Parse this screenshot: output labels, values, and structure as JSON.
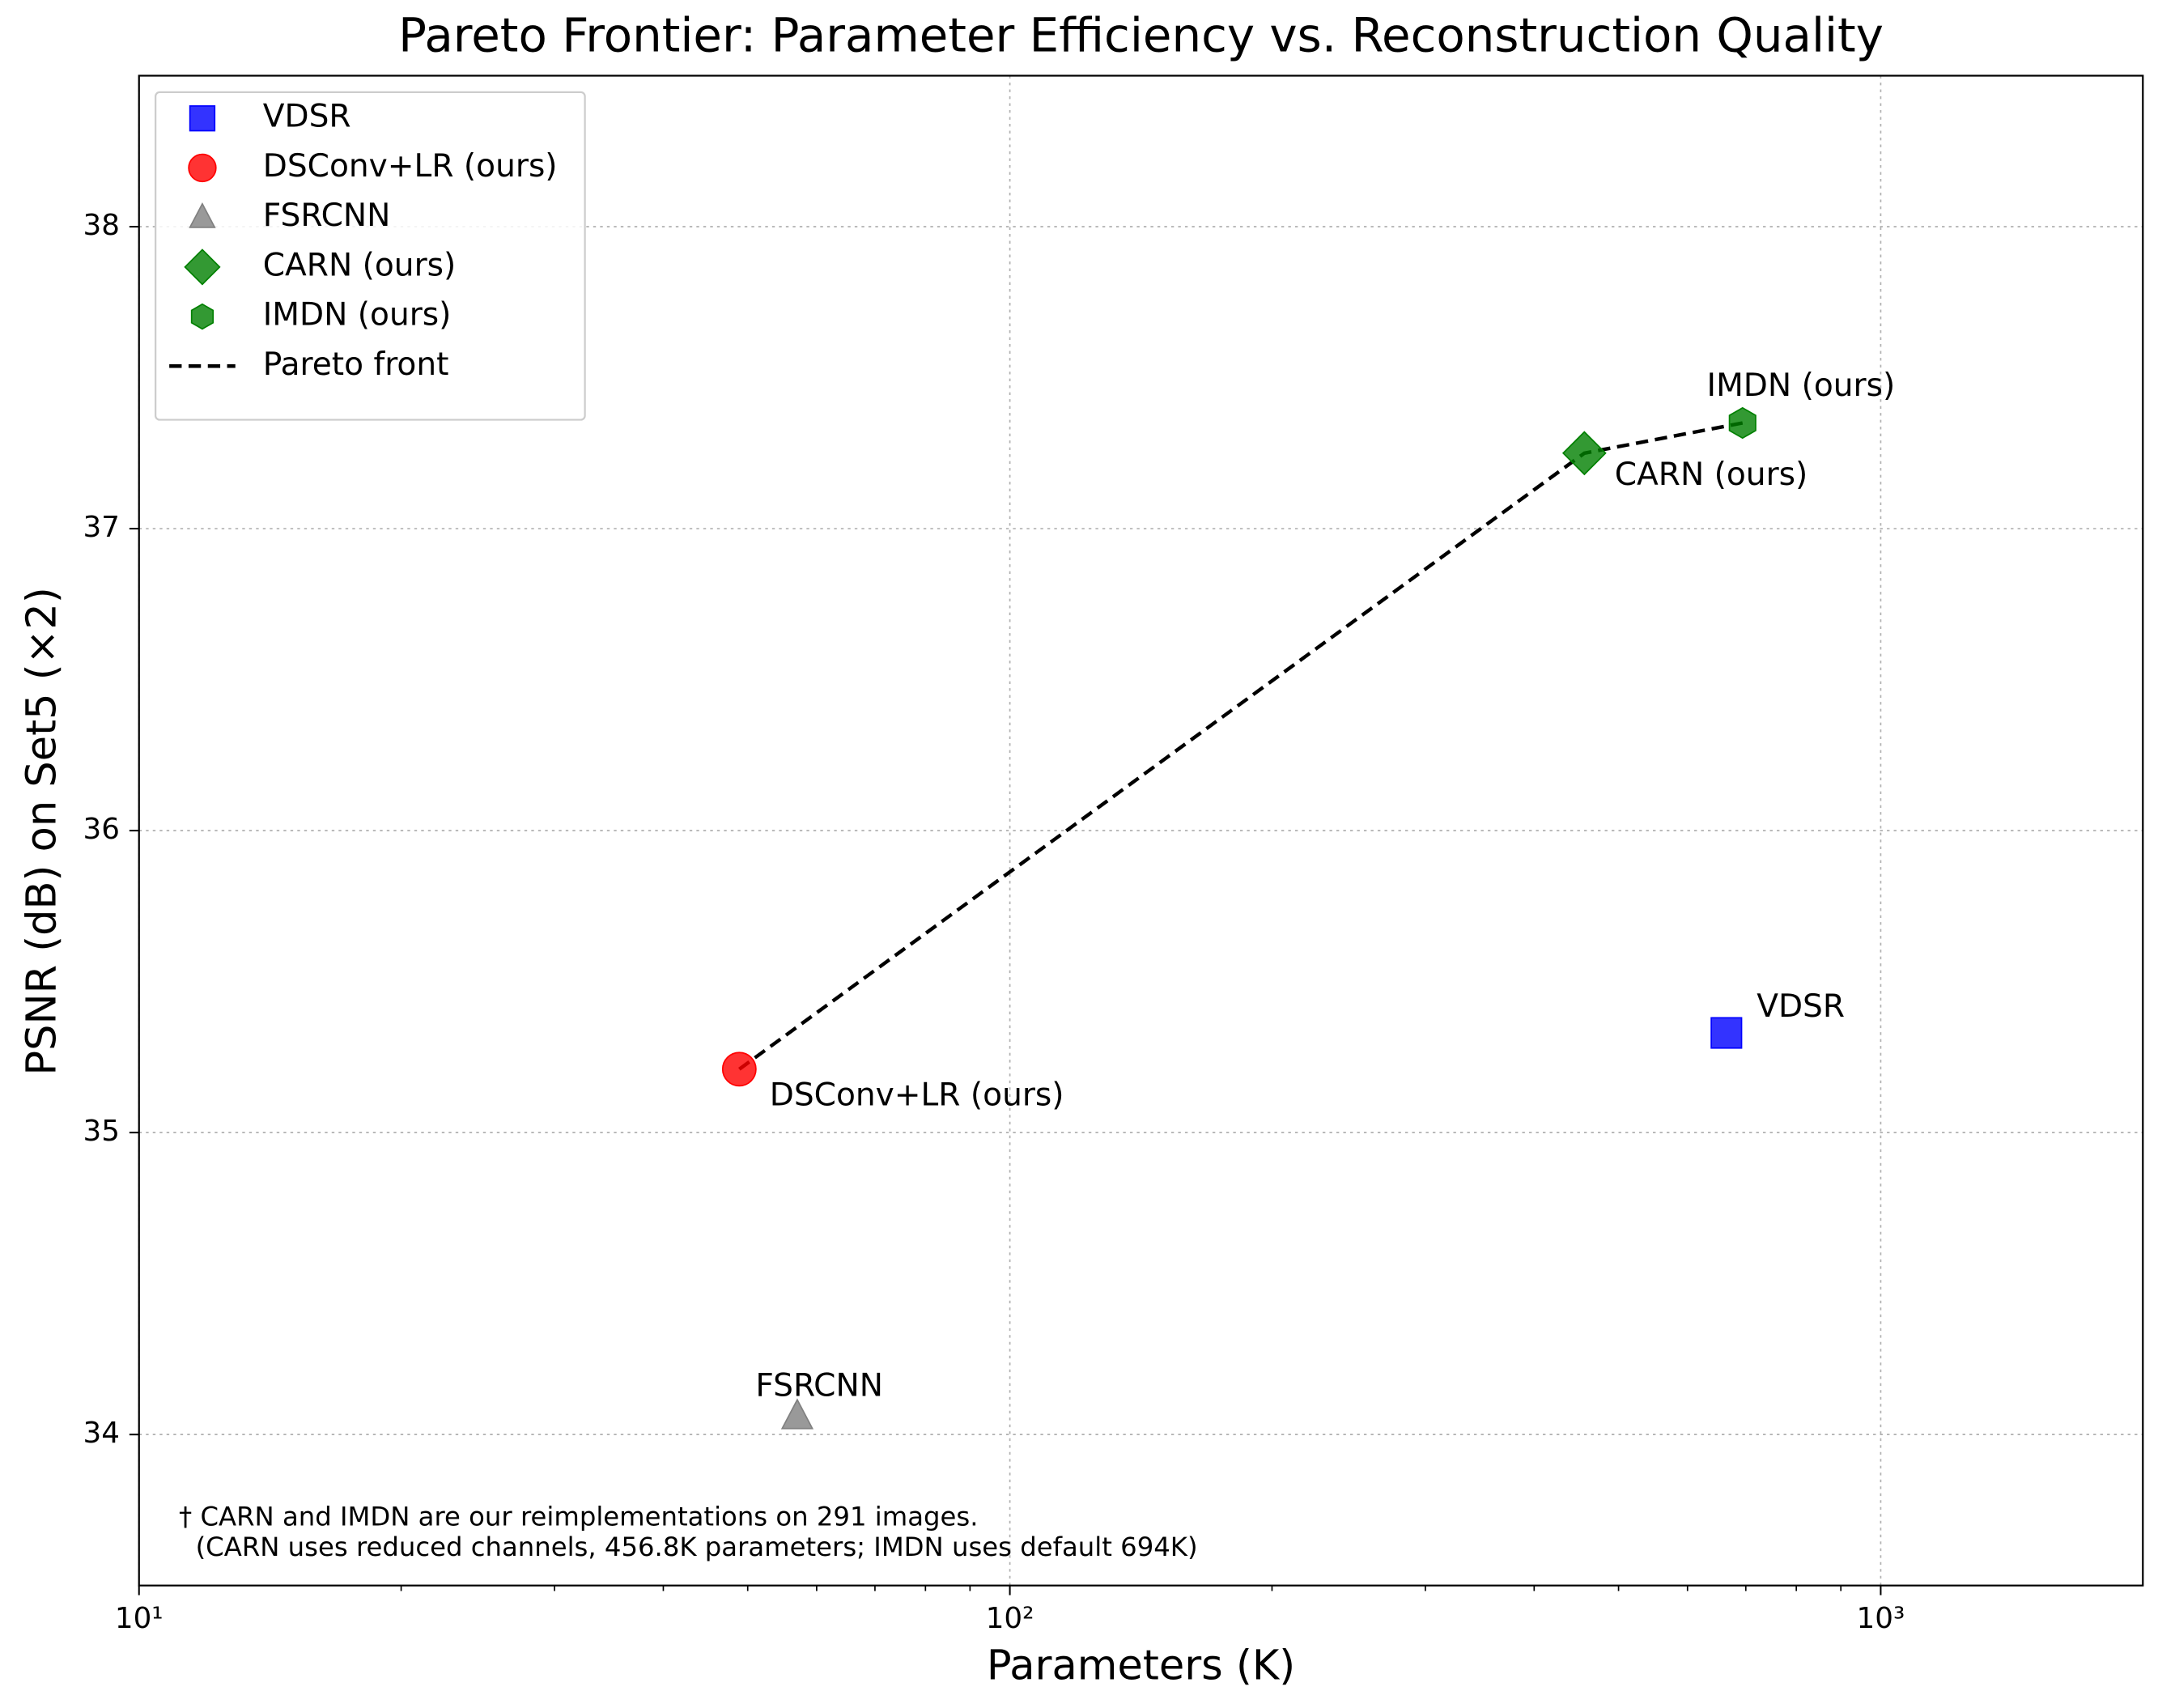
{
  "chart_data": {
    "type": "scatter",
    "title": "Pareto Frontier: Parameter Efficiency vs. Reconstruction Quality",
    "xlabel": "Parameters (K)",
    "ylabel": "PSNR (dB) on Set5 (×2)",
    "xscale": "log",
    "xlim": [
      10,
      2000
    ],
    "ylim": [
      33.5,
      38.5
    ],
    "xticks": [
      {
        "value": 10,
        "label": "10¹"
      },
      {
        "value": 100,
        "label": "10²"
      },
      {
        "value": 1000,
        "label": "10³"
      }
    ],
    "xminorticks": [
      20,
      30,
      40,
      50,
      60,
      70,
      80,
      90,
      200,
      300,
      400,
      500,
      600,
      700,
      800,
      900
    ],
    "yticks": [
      34,
      35,
      36,
      37,
      38
    ],
    "grid": true,
    "legend": "upper left",
    "series": [
      {
        "name": "VDSR",
        "color": "#0000ff",
        "marker": "square",
        "x": [
          665
        ],
        "values": [
          35.33
        ]
      },
      {
        "name": "DSConv+LR (ours)",
        "color": "#ff0000",
        "marker": "circle",
        "x": [
          48.9
        ],
        "values": [
          35.21
        ]
      },
      {
        "name": "FSRCNN",
        "color": "#808080",
        "marker": "triangle",
        "x": [
          57
        ],
        "values": [
          34.06
        ]
      },
      {
        "name": "CARN (ours)",
        "color": "#008000",
        "marker": "diamond",
        "x": [
          456.8
        ],
        "values": [
          37.25
        ]
      },
      {
        "name": "IMDN (ours)",
        "color": "#008000",
        "marker": "hexagon",
        "x": [
          694
        ],
        "values": [
          37.35
        ]
      }
    ],
    "pareto_front": {
      "name": "Pareto front",
      "color": "#000000",
      "style": "dashed",
      "x": [
        48.9,
        456.8,
        694
      ],
      "values": [
        35.21,
        37.25,
        37.35
      ]
    },
    "footnote": [
      "† CARN and IMDN are our reimplementations on 291 images.",
      "  (CARN uses reduced channels, 456.8K parameters; IMDN uses default 694K)"
    ]
  }
}
